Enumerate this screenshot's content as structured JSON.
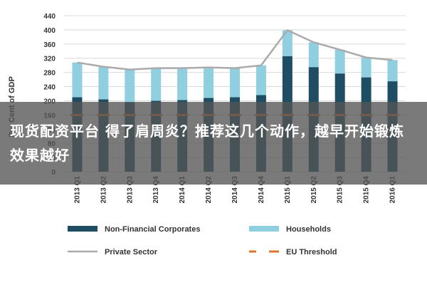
{
  "chart_data": {
    "type": "bar",
    "ylabel": "Per Cent of GDP",
    "ylim": [
      0,
      440
    ],
    "yticks": [
      0,
      40,
      80,
      120,
      160,
      200,
      240,
      280,
      320,
      360,
      400,
      440
    ],
    "categories": [
      "2013 Q1",
      "2013 Q2",
      "2013 Q3",
      "2013 Q4",
      "2014 Q1",
      "2014 Q2",
      "2014 Q3",
      "2014 Q4",
      "2015 Q1",
      "2015 Q2",
      "2015 Q3",
      "2015 Q4",
      "2016 Q1"
    ],
    "series": [
      {
        "name": "Non-Financial Corporates",
        "kind": "bar-stack",
        "color": "#1f4e64",
        "values": [
          210,
          204,
          196,
          200,
          202,
          208,
          210,
          216,
          326,
          295,
          277,
          266,
          255
        ]
      },
      {
        "name": "Households",
        "kind": "bar-stack",
        "color": "#8fcfe0",
        "values": [
          98,
          92,
          92,
          92,
          90,
          86,
          82,
          84,
          73,
          70,
          67,
          56,
          60
        ]
      },
      {
        "name": "Private Sector",
        "kind": "line",
        "color": "#aaaaaa",
        "values": [
          308,
          296,
          288,
          292,
          292,
          294,
          292,
          300,
          399,
          365,
          344,
          322,
          315
        ]
      },
      {
        "name": "EU Threshold",
        "kind": "dashed",
        "color": "#e0762a",
        "values": [
          160,
          160,
          160,
          160,
          160,
          160,
          160,
          160,
          160,
          160,
          160,
          160,
          160
        ]
      }
    ],
    "grid": true,
    "legend_position": "bottom"
  },
  "overlay": {
    "caption": "现货配资平台 得了肩周炎？推荐这几个动作，越早开始锻炼效果越好"
  }
}
